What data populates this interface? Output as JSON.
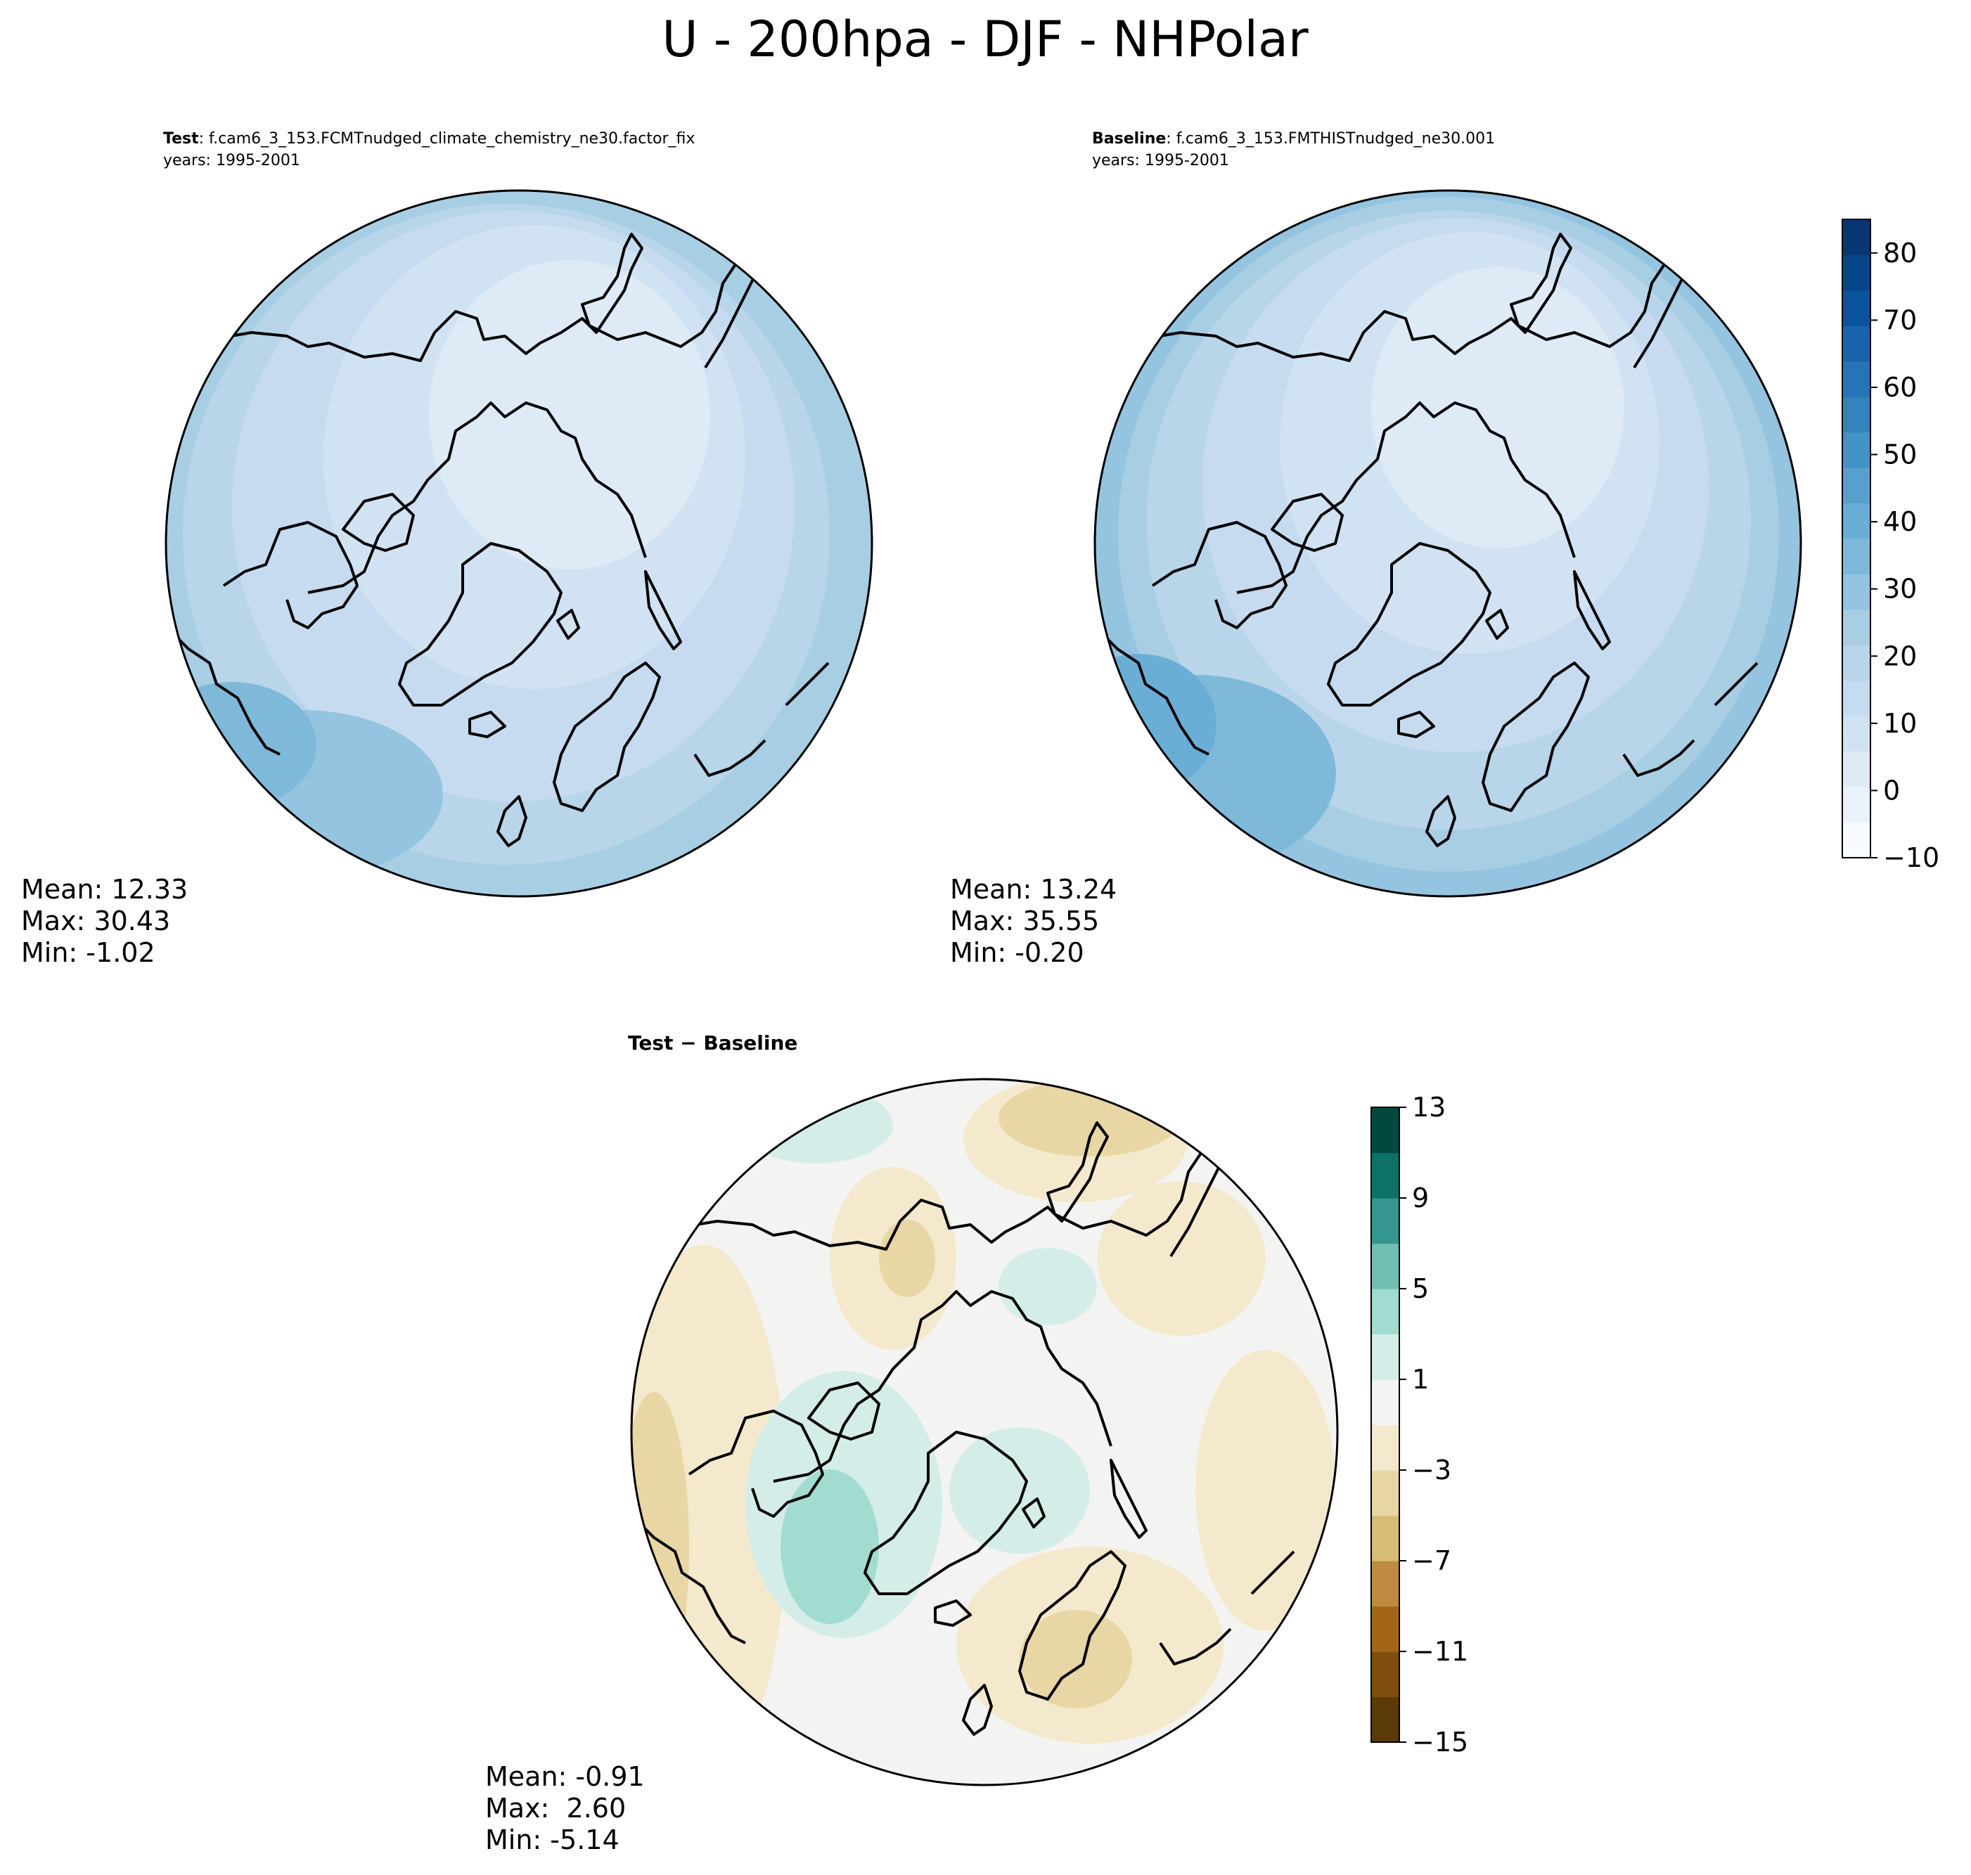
{
  "figure": {
    "title": "U - 200hpa - DJF - NHPolar"
  },
  "colors": {
    "test_baseline_cmap": [
      "#f7fbff",
      "#eaf3fb",
      "#deebf7",
      "#d1e3f3",
      "#c6dbef",
      "#b8d5ea",
      "#a8cee4",
      "#94c4df",
      "#7fb9da",
      "#6aaed6",
      "#57a0ce",
      "#4493c7",
      "#3383be",
      "#2474b7",
      "#1764ab",
      "#0a549e",
      "#08468b",
      "#083674"
    ],
    "diff_cmap": [
      "#5a3a07",
      "#804f0e",
      "#a36618",
      "#bf8a3f",
      "#d7bc74",
      "#e8d6a4",
      "#f4e9cc",
      "#f3f4f2",
      "#d4ede8",
      "#a2dcd1",
      "#6fbfb2",
      "#35978f",
      "#0d7166",
      "#00493e"
    ],
    "coast": "#000000",
    "mean_test": "#c3d9ef",
    "mean_base": "#c2d8ee",
    "mean_diff": "#f3f4f2"
  },
  "chart_data": [
    {
      "type": "heatmap",
      "panel": "test",
      "title_bold": "Test",
      "title_rest": ": f.cam6_3_153.FCMTnudged_climate_chemistry_ne30.factor_fix",
      "years": "years: 1995-2001",
      "stats": {
        "mean": "Mean: 12.33",
        "max": "Max: 30.43",
        "min": "Min: -1.02"
      },
      "projection": "north-polar-stereographic",
      "contour_levels": [
        -10,
        -5,
        0,
        5,
        10,
        15,
        20,
        25,
        30,
        35,
        40,
        45,
        50,
        55,
        60,
        65,
        70,
        75,
        80,
        85
      ],
      "field_summary": {
        "mean": 12.33,
        "max": 30.43,
        "min": -1.02
      }
    },
    {
      "type": "heatmap",
      "panel": "baseline",
      "title_bold": "Baseline",
      "title_rest": ": f.cam6_3_153.FMTHISTnudged_ne30.001",
      "years": "years: 1995-2001",
      "stats": {
        "mean": "Mean: 13.24",
        "max": "Max: 35.55",
        "min": "Min: -0.20"
      },
      "projection": "north-polar-stereographic",
      "colorbar": {
        "ticks": [
          "80",
          "70",
          "60",
          "50",
          "40",
          "30",
          "20",
          "10",
          "0",
          "−10"
        ],
        "range": [
          -10,
          85
        ]
      },
      "field_summary": {
        "mean": 13.24,
        "max": 35.55,
        "min": -0.2
      }
    },
    {
      "type": "heatmap",
      "panel": "difference",
      "title_bold": "Test − Baseline",
      "stats": {
        "mean": "Mean: -0.91",
        "max": "Max:  2.60",
        "min": "Min: -5.14"
      },
      "projection": "north-polar-stereographic",
      "colorbar": {
        "ticks": [
          "13",
          "9",
          "5",
          "1",
          "−3",
          "−7",
          "−11",
          "−15"
        ],
        "range": [
          -15,
          13
        ],
        "levels": [
          -15,
          -13,
          -11,
          -9,
          -7,
          -5,
          -3,
          -1,
          1,
          3,
          5,
          7,
          9,
          11,
          13
        ]
      },
      "field_summary": {
        "mean": -0.91,
        "max": 2.6,
        "min": -5.14
      }
    }
  ]
}
